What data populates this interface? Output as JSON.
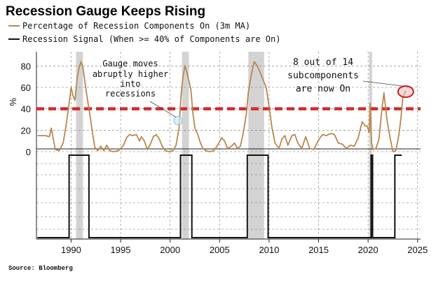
{
  "chart_data": {
    "type": "line",
    "title": "Recession Gauge Keeps Rising",
    "ylabel": "%",
    "xlim": [
      1986.5,
      2025.3
    ],
    "ylim": [
      0,
      90
    ],
    "x_ticks": [
      1990,
      1995,
      2000,
      2005,
      2010,
      2015,
      2020,
      2025
    ],
    "y_ticks": [
      0,
      20,
      40,
      60,
      80
    ],
    "threshold": {
      "value": 40,
      "color": "#d42a2a"
    },
    "recessions": [
      [
        1990.5,
        1991.2
      ],
      [
        2001.2,
        2001.9
      ],
      [
        2007.9,
        2009.5
      ],
      [
        2020.1,
        2020.4
      ]
    ],
    "series": [
      {
        "name": "Percentage of Recession Components On (3m MA)",
        "color": "#b8874f",
        "points": [
          [
            1986.6,
            15
          ],
          [
            1987.4,
            15
          ],
          [
            1987.8,
            14
          ],
          [
            1988.0,
            22
          ],
          [
            1988.2,
            12
          ],
          [
            1988.4,
            2
          ],
          [
            1988.8,
            1
          ],
          [
            1989.2,
            8
          ],
          [
            1989.5,
            25
          ],
          [
            1989.8,
            45
          ],
          [
            1990.0,
            60
          ],
          [
            1990.2,
            52
          ],
          [
            1990.4,
            48
          ],
          [
            1990.6,
            68
          ],
          [
            1990.8,
            78
          ],
          [
            1991.0,
            84
          ],
          [
            1991.2,
            78
          ],
          [
            1991.4,
            65
          ],
          [
            1991.6,
            52
          ],
          [
            1991.8,
            40
          ],
          [
            1992.0,
            28
          ],
          [
            1992.2,
            15
          ],
          [
            1992.4,
            4
          ],
          [
            1992.7,
            1
          ],
          [
            1993.0,
            5
          ],
          [
            1993.3,
            1
          ],
          [
            1993.6,
            6
          ],
          [
            1993.9,
            1
          ],
          [
            1994.3,
            0
          ],
          [
            1994.8,
            1
          ],
          [
            1995.3,
            6
          ],
          [
            1995.6,
            13
          ],
          [
            1995.9,
            16
          ],
          [
            1996.2,
            15
          ],
          [
            1996.6,
            16
          ],
          [
            1996.9,
            10
          ],
          [
            1997.1,
            14
          ],
          [
            1997.4,
            10
          ],
          [
            1997.7,
            2
          ],
          [
            1998.0,
            7
          ],
          [
            1998.3,
            14
          ],
          [
            1998.6,
            16
          ],
          [
            1998.9,
            12
          ],
          [
            1999.2,
            5
          ],
          [
            1999.5,
            1
          ],
          [
            1999.9,
            0
          ],
          [
            2000.3,
            1
          ],
          [
            2000.6,
            6
          ],
          [
            2000.9,
            22
          ],
          [
            2001.1,
            52
          ],
          [
            2001.3,
            70
          ],
          [
            2001.5,
            80
          ],
          [
            2001.7,
            74
          ],
          [
            2001.9,
            66
          ],
          [
            2002.1,
            58
          ],
          [
            2002.3,
            36
          ],
          [
            2002.5,
            22
          ],
          [
            2002.8,
            16
          ],
          [
            2003.0,
            10
          ],
          [
            2003.3,
            3
          ],
          [
            2003.6,
            1
          ],
          [
            2004.0,
            0
          ],
          [
            2004.4,
            1
          ],
          [
            2004.8,
            6
          ],
          [
            2005.2,
            13
          ],
          [
            2005.5,
            10
          ],
          [
            2005.8,
            3
          ],
          [
            2006.2,
            5
          ],
          [
            2006.5,
            8
          ],
          [
            2006.8,
            3
          ],
          [
            2007.1,
            5
          ],
          [
            2007.4,
            18
          ],
          [
            2007.7,
            35
          ],
          [
            2007.9,
            55
          ],
          [
            2008.2,
            72
          ],
          [
            2008.5,
            84
          ],
          [
            2008.8,
            80
          ],
          [
            2009.1,
            74
          ],
          [
            2009.4,
            67
          ],
          [
            2009.7,
            60
          ],
          [
            2010.0,
            42
          ],
          [
            2010.3,
            22
          ],
          [
            2010.6,
            8
          ],
          [
            2011.0,
            3
          ],
          [
            2011.3,
            12
          ],
          [
            2011.6,
            15
          ],
          [
            2011.9,
            6
          ],
          [
            2012.3,
            15
          ],
          [
            2012.6,
            16
          ],
          [
            2012.9,
            8
          ],
          [
            2013.3,
            3
          ],
          [
            2013.7,
            14
          ],
          [
            2014.1,
            3
          ],
          [
            2014.5,
            2
          ],
          [
            2015.0,
            11
          ],
          [
            2015.4,
            16
          ],
          [
            2015.8,
            15
          ],
          [
            2016.2,
            17
          ],
          [
            2016.6,
            16
          ],
          [
            2017.0,
            8
          ],
          [
            2017.4,
            7
          ],
          [
            2017.8,
            3
          ],
          [
            2018.2,
            6
          ],
          [
            2018.6,
            5
          ],
          [
            2019.0,
            13
          ],
          [
            2019.4,
            28
          ],
          [
            2019.7,
            24
          ],
          [
            2019.9,
            24
          ],
          [
            2020.1,
            18
          ],
          [
            2020.2,
            45
          ],
          [
            2020.35,
            8
          ],
          [
            2020.5,
            2
          ],
          [
            2020.8,
            3
          ],
          [
            2021.1,
            12
          ],
          [
            2021.4,
            40
          ],
          [
            2021.6,
            55
          ],
          [
            2021.9,
            30
          ],
          [
            2022.2,
            14
          ],
          [
            2022.5,
            0
          ],
          [
            2022.8,
            1
          ],
          [
            2023.1,
            15
          ],
          [
            2023.3,
            30
          ],
          [
            2023.5,
            50
          ],
          [
            2023.8,
            57
          ]
        ]
      },
      {
        "name": "Recession Signal (When >= 40% of Components are On)",
        "color": "#111111",
        "points": [
          [
            1986.6,
            0
          ],
          [
            1989.8,
            0
          ],
          [
            1989.8,
            1
          ],
          [
            1991.8,
            1
          ],
          [
            1991.8,
            0
          ],
          [
            2001.05,
            0
          ],
          [
            2001.05,
            1
          ],
          [
            2002.2,
            1
          ],
          [
            2002.2,
            0
          ],
          [
            2007.8,
            0
          ],
          [
            2007.8,
            1
          ],
          [
            2009.9,
            1
          ],
          [
            2009.9,
            0
          ],
          [
            2020.3,
            0
          ],
          [
            2020.3,
            1
          ],
          [
            2020.45,
            1
          ],
          [
            2020.45,
            0
          ],
          [
            2022.7,
            0
          ],
          [
            2022.7,
            1
          ],
          [
            2023.4,
            1
          ]
        ]
      }
    ],
    "annotations": [
      {
        "id": "gauge",
        "lines": [
          "Gauge moves",
          "abruptly higher",
          "into",
          "recessions"
        ],
        "marker": [
          2000.8,
          29
        ]
      },
      {
        "id": "components",
        "lines": [
          "8 out of 14",
          "subcomponents",
          "are now On"
        ],
        "marker": [
          2023.8,
          56
        ]
      }
    ]
  },
  "legend": [
    {
      "label": "Percentage of Recession Components On (3m MA)",
      "color": "#b8874f"
    },
    {
      "label": "Recession Signal (When >= 40% of Components are On)",
      "color": "#111111"
    }
  ],
  "source": "Source: Bloomberg"
}
